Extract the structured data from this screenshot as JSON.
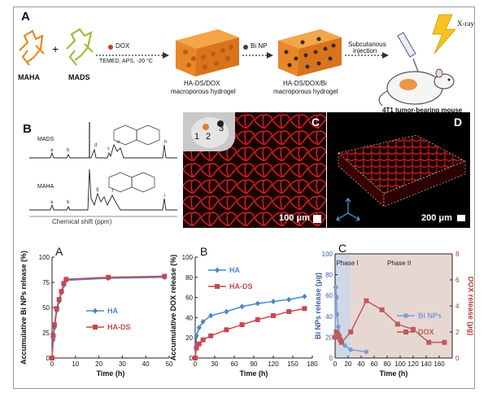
{
  "top_panel": {
    "letter": "A",
    "monomer1": "MAHA",
    "plus": "+",
    "monomer2": "MADS",
    "reagent_dox": "DOX",
    "conditions": "TEMED, APS, -20 °C",
    "gel1_line1": "HA-DS/DOX",
    "gel1_line2": "macroporous hydrogel",
    "reagent_bi": "Bi NP",
    "gel2_line1": "HA-DS/DOX/Bi",
    "gel2_line2": "macroporous hydrogel",
    "route_line1": "Subcutanous",
    "route_line2": "injection",
    "xray": "X-ray",
    "mouse": "4T1 tumor-bearing mouse"
  },
  "nmr_panel": {
    "letter": "B",
    "spectrum1": "MADS",
    "spectrum2": "MAHA",
    "peak_labels": [
      "a",
      "b",
      "c",
      "d",
      "e",
      "f",
      "g",
      "h",
      "i"
    ],
    "xlabel": "Chemical shift (ppm)"
  },
  "micro_c": {
    "letter": "C",
    "inset_labels": [
      "1",
      "2",
      "3"
    ],
    "scale": "100 μm"
  },
  "micro_d": {
    "letter": "D",
    "scale": "200 μm"
  },
  "colors": {
    "ha_blue": "#4a86c6",
    "hads_red": "#c8474f",
    "gel_orange": "#e8862a",
    "bi_nps": "#7a9fd4",
    "dox": "#c05a5a"
  },
  "chart_data": [
    {
      "type": "line",
      "panel": "A",
      "ylabel": "Accumulative Bi NPs release (%)",
      "xlabel": "Time (h)",
      "xlim": [
        0,
        50
      ],
      "ylim": [
        0,
        100
      ],
      "xticks": [
        0,
        10,
        20,
        30,
        40,
        50
      ],
      "yticks": [
        0,
        25,
        50,
        75,
        100
      ],
      "series": [
        {
          "name": "HA",
          "x": [
            0,
            0.5,
            1,
            2,
            3,
            4,
            5,
            6,
            24,
            48
          ],
          "y": [
            0,
            18,
            30,
            47,
            56,
            65,
            72,
            77,
            79,
            80
          ]
        },
        {
          "name": "HA-DS",
          "x": [
            0,
            0.5,
            1,
            2,
            3,
            4,
            5,
            6,
            24,
            48
          ],
          "y": [
            0,
            22,
            33,
            49,
            58,
            66,
            74,
            78,
            80,
            81
          ]
        }
      ]
    },
    {
      "type": "line",
      "panel": "B",
      "ylabel": "Accumulative DOX release (%)",
      "xlabel": "Time (h)",
      "xlim": [
        0,
        180
      ],
      "ylim": [
        0,
        100
      ],
      "xticks": [
        0,
        30,
        60,
        90,
        120,
        150,
        180
      ],
      "yticks": [
        0,
        20,
        40,
        60,
        80,
        100
      ],
      "series": [
        {
          "name": "HA",
          "x": [
            0,
            2,
            6,
            12,
            24,
            48,
            72,
            96,
            120,
            144,
            168
          ],
          "y": [
            0,
            22,
            30,
            36,
            42,
            46,
            51,
            54,
            56,
            58,
            61
          ]
        },
        {
          "name": "HA-DS",
          "x": [
            0,
            2,
            6,
            12,
            24,
            48,
            72,
            96,
            120,
            144,
            168
          ],
          "y": [
            0,
            10,
            14,
            18,
            22,
            28,
            33,
            38,
            42,
            46,
            49
          ]
        }
      ]
    },
    {
      "type": "line",
      "panel": "C",
      "ylabel": "Bi NPs release (μg)",
      "ylabel_right": "DOX release (μg)",
      "xlabel": "Time (h)",
      "phase_labels": [
        "Phase I",
        "Phase II"
      ],
      "xlim": [
        0,
        180
      ],
      "ylim": [
        0,
        100
      ],
      "ylim_right": [
        0,
        8
      ],
      "xticks": [
        0,
        20,
        40,
        60,
        80,
        100,
        120,
        140,
        160
      ],
      "yticks": [
        0,
        20,
        40,
        60,
        80,
        100
      ],
      "yticks_right": [
        0,
        2,
        4,
        6,
        8
      ],
      "series": [
        {
          "name": "Bi NPs",
          "axis": "left",
          "x": [
            0,
            1,
            2,
            3,
            5,
            7,
            10,
            15,
            24,
            48
          ],
          "y": [
            20,
            68,
            58,
            42,
            30,
            22,
            16,
            12,
            8,
            6
          ]
        },
        {
          "name": "DOX",
          "axis": "right",
          "x": [
            0,
            2,
            4,
            6,
            8,
            10,
            24,
            48,
            72,
            96,
            120,
            144,
            168
          ],
          "y": [
            1.6,
            2.0,
            1.8,
            1.6,
            1.4,
            1.2,
            2.0,
            4.4,
            3.7,
            2.6,
            2.2,
            1.2,
            1.2
          ]
        }
      ]
    }
  ]
}
